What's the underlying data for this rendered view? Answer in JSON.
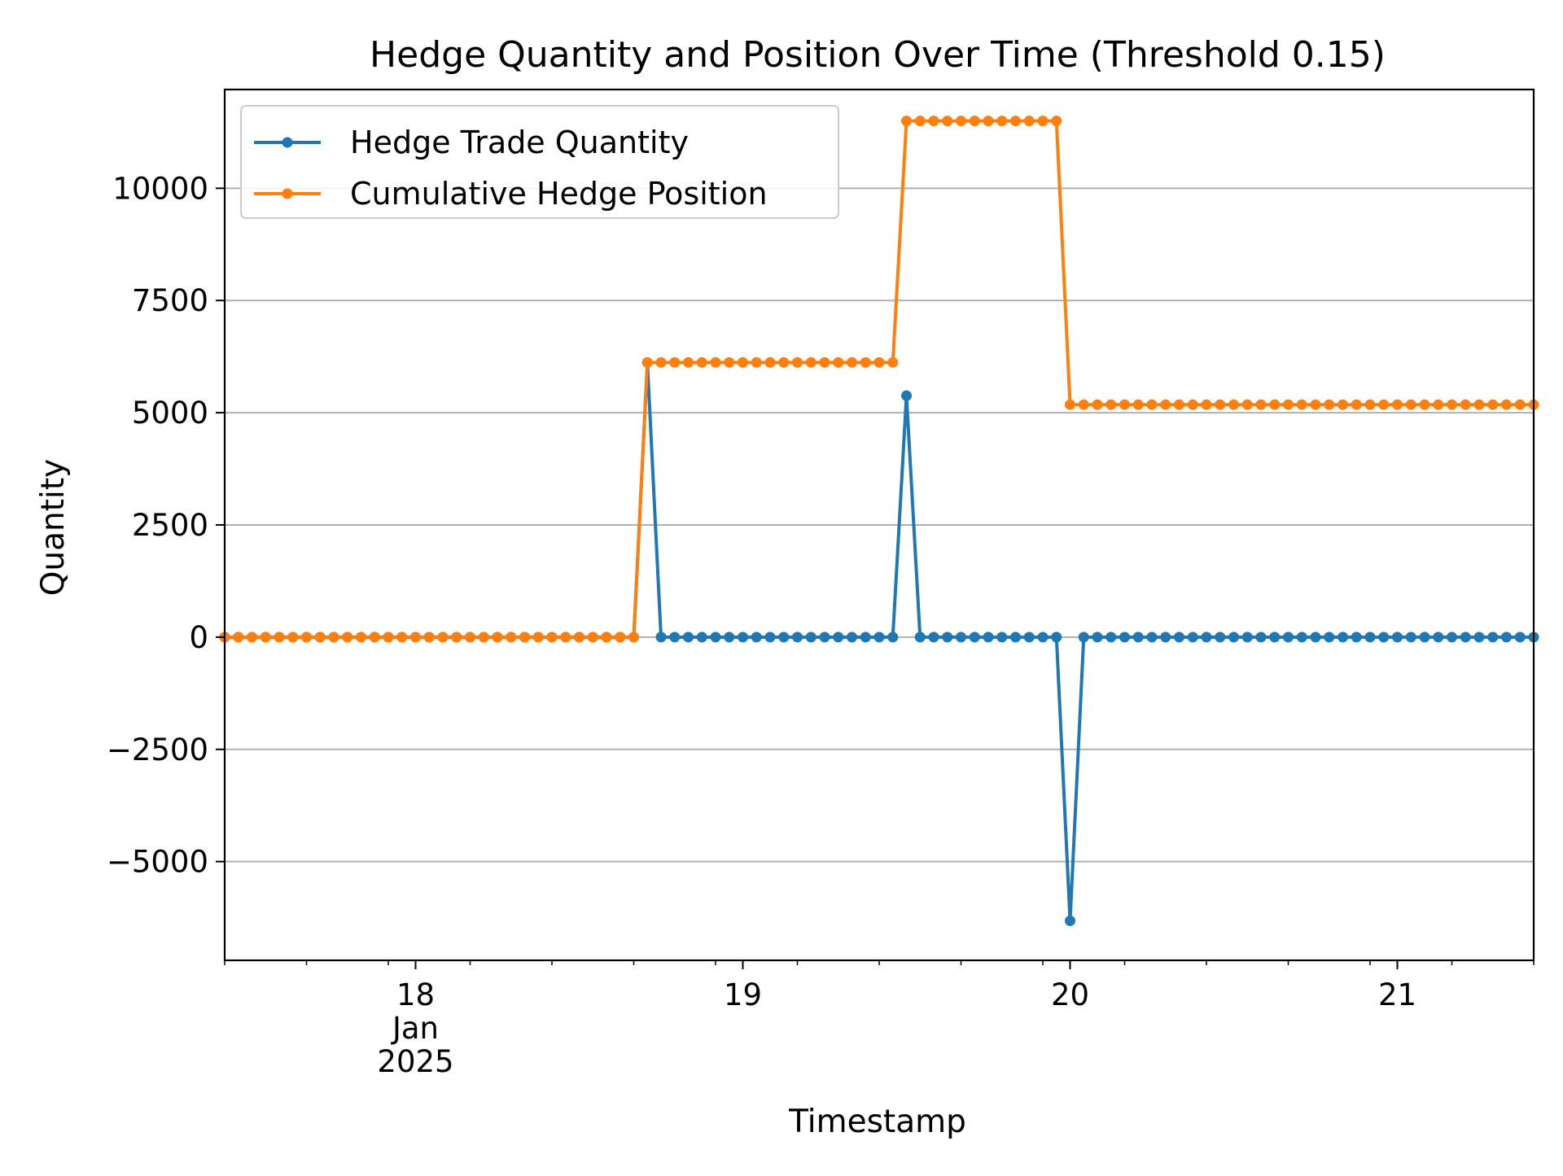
{
  "chart_data": {
    "type": "line",
    "title": "Hedge Quantity and Position Over Time (Threshold 0.15)",
    "xlabel": "Timestamp",
    "ylabel": "Quantity",
    "x_unit": "datetime",
    "x_start": "2025-01-17 10:00",
    "x_step_hours": 1,
    "x_count": 97,
    "xlim": [
      "2025-01-17 10:00",
      "2025-01-21 10:00"
    ],
    "ylim": [
      -7200,
      12200
    ],
    "yticks": [
      -5000,
      -2500,
      0,
      2500,
      5000,
      7500,
      10000
    ],
    "ytick_labels": [
      "−5000",
      "−2500",
      "0",
      "2500",
      "5000",
      "7500",
      "10000"
    ],
    "xticks": [
      {
        "date": "2025-01-18",
        "lines": [
          "18",
          "Jan",
          "2025"
        ]
      },
      {
        "date": "2025-01-19",
        "lines": [
          "19"
        ]
      },
      {
        "date": "2025-01-20",
        "lines": [
          "20"
        ]
      },
      {
        "date": "2025-01-21",
        "lines": [
          "21"
        ]
      }
    ],
    "grid": "y",
    "legend_position": "upper-left",
    "series": [
      {
        "name": "Hedge Trade Quantity",
        "color": "#1f77b4",
        "values": [
          0,
          0,
          0,
          0,
          0,
          0,
          0,
          0,
          0,
          0,
          0,
          0,
          0,
          0,
          0,
          0,
          0,
          0,
          0,
          0,
          0,
          0,
          0,
          0,
          0,
          0,
          0,
          0,
          0,
          0,
          0,
          6120,
          0,
          0,
          0,
          0,
          0,
          0,
          0,
          0,
          0,
          0,
          0,
          0,
          0,
          0,
          0,
          0,
          0,
          0,
          5380,
          0,
          0,
          0,
          0,
          0,
          0,
          0,
          0,
          0,
          0,
          0,
          -6320,
          0,
          0,
          0,
          0,
          0,
          0,
          0,
          0,
          0,
          0,
          0,
          0,
          0,
          0,
          0,
          0,
          0,
          0,
          0,
          0,
          0,
          0,
          0,
          0,
          0,
          0,
          0,
          0,
          0,
          0,
          0,
          0,
          0,
          0
        ]
      },
      {
        "name": "Cumulative Hedge Position",
        "color": "#ff7f0e",
        "values": [
          0,
          0,
          0,
          0,
          0,
          0,
          0,
          0,
          0,
          0,
          0,
          0,
          0,
          0,
          0,
          0,
          0,
          0,
          0,
          0,
          0,
          0,
          0,
          0,
          0,
          0,
          0,
          0,
          0,
          0,
          0,
          6120,
          6120,
          6120,
          6120,
          6120,
          6120,
          6120,
          6120,
          6120,
          6120,
          6120,
          6120,
          6120,
          6120,
          6120,
          6120,
          6120,
          6120,
          6120,
          11500,
          11500,
          11500,
          11500,
          11500,
          11500,
          11500,
          11500,
          11500,
          11500,
          11500,
          11500,
          5180,
          5180,
          5180,
          5180,
          5180,
          5180,
          5180,
          5180,
          5180,
          5180,
          5180,
          5180,
          5180,
          5180,
          5180,
          5180,
          5180,
          5180,
          5180,
          5180,
          5180,
          5180,
          5180,
          5180,
          5180,
          5180,
          5180,
          5180,
          5180,
          5180,
          5180,
          5180,
          5180,
          5180,
          5180
        ]
      }
    ]
  }
}
